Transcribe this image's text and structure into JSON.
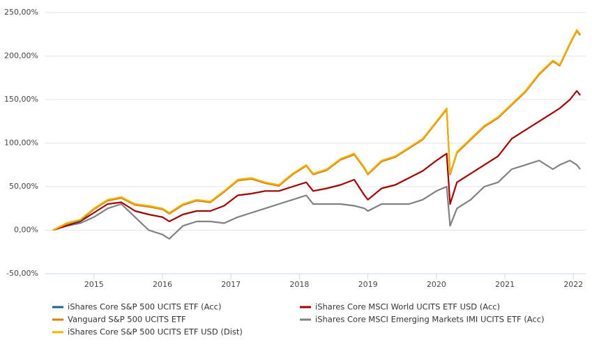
{
  "chart_data": {
    "type": "line",
    "x": [
      2014.4,
      2014.6,
      2014.8,
      2015.0,
      2015.2,
      2015.4,
      2015.6,
      2015.8,
      2016.0,
      2016.1,
      2016.3,
      2016.5,
      2016.7,
      2016.9,
      2017.1,
      2017.3,
      2017.5,
      2017.7,
      2017.9,
      2018.1,
      2018.2,
      2018.4,
      2018.6,
      2018.8,
      2018.95,
      2019.0,
      2019.2,
      2019.4,
      2019.6,
      2019.8,
      2020.0,
      2020.15,
      2020.2,
      2020.3,
      2020.5,
      2020.7,
      2020.9,
      2021.1,
      2021.3,
      2021.5,
      2021.7,
      2021.8,
      2021.95,
      2022.05,
      2022.1
    ],
    "xlim": [
      2014.29,
      2022.18
    ],
    "xticks": [
      2015,
      2016,
      2017,
      2018,
      2019,
      2020,
      2021,
      2022
    ],
    "ylim": [
      -50,
      250
    ],
    "yticks": [
      {
        "value": -50,
        "label": "-50,00%"
      },
      {
        "value": 0,
        "label": "0,00%"
      },
      {
        "value": 50,
        "label": "50,00%"
      },
      {
        "value": 100,
        "label": "100,00%"
      },
      {
        "value": 150,
        "label": "150,00%"
      },
      {
        "value": 200,
        "label": "200,00%"
      },
      {
        "value": 250,
        "label": "250,00%"
      }
    ],
    "grid": true,
    "series": [
      {
        "name": "iShares Core S&P 500 UCITS ETF (Acc)",
        "color": "#1f5f8b",
        "values": [
          0,
          7,
          11,
          24,
          34,
          37,
          29,
          27,
          24,
          19,
          29,
          34,
          32,
          44,
          57,
          59,
          54,
          51,
          64,
          74,
          64,
          69,
          81,
          87,
          71,
          64,
          79,
          84,
          94,
          104,
          124,
          139,
          64,
          89,
          104,
          119,
          129,
          144,
          159,
          179,
          194,
          189,
          214,
          229,
          224
        ]
      },
      {
        "name": "Vanguard S&P 500 UCITS ETF",
        "color": "#e07b00",
        "values": [
          0,
          7,
          12,
          24,
          34,
          37,
          29,
          27,
          24,
          19,
          29,
          34,
          32,
          44,
          57,
          59,
          54,
          51,
          64,
          74,
          64,
          69,
          81,
          87,
          71,
          64,
          79,
          84,
          94,
          104,
          124,
          139,
          64,
          89,
          104,
          119,
          129,
          144,
          159,
          179,
          194,
          189,
          214,
          229,
          224
        ]
      },
      {
        "name": "iShares Core S&P 500 UCITS ETF USD (Dist)",
        "color": "#f0b400",
        "values": [
          0,
          8,
          12,
          25,
          35,
          38,
          30,
          28,
          25,
          20,
          30,
          35,
          33,
          45,
          58,
          60,
          55,
          52,
          65,
          75,
          65,
          70,
          82,
          88,
          72,
          65,
          80,
          85,
          95,
          105,
          125,
          140,
          65,
          90,
          105,
          120,
          130,
          145,
          160,
          180,
          195,
          190,
          215,
          230,
          225
        ]
      },
      {
        "name": "iShares Core MSCI World UCITS ETF USD (Acc)",
        "color": "#a00000",
        "values": [
          0,
          5,
          10,
          20,
          30,
          32,
          22,
          18,
          15,
          10,
          18,
          22,
          22,
          28,
          40,
          42,
          45,
          45,
          50,
          55,
          45,
          48,
          52,
          58,
          40,
          35,
          48,
          52,
          60,
          68,
          80,
          88,
          30,
          55,
          65,
          75,
          85,
          105,
          115,
          125,
          135,
          140,
          150,
          160,
          155
        ]
      },
      {
        "name": "iShares Core MSCI Emerging Markets IMI UCITS ETF (Acc)",
        "color": "#808080",
        "values": [
          0,
          5,
          8,
          15,
          25,
          30,
          15,
          0,
          -5,
          -10,
          5,
          10,
          10,
          8,
          15,
          20,
          25,
          30,
          35,
          40,
          30,
          30,
          30,
          28,
          25,
          22,
          30,
          30,
          30,
          35,
          45,
          50,
          5,
          25,
          35,
          50,
          55,
          70,
          75,
          80,
          70,
          75,
          80,
          75,
          70
        ]
      }
    ]
  }
}
